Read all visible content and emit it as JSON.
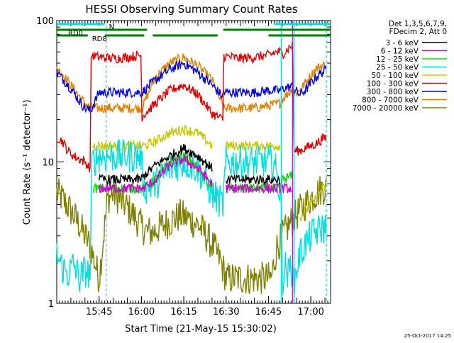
{
  "chart_data": {
    "type": "line",
    "title": "HESSI Observing Summary Count Rates",
    "xlabel": "Start Time (21-May-15 15:30:02)",
    "ylabel": "Count Rate (s⁻¹ detector⁻¹)",
    "footer_date": "25-Oct-2017 14:25",
    "y_scale": "log",
    "ylim": [
      1,
      100
    ],
    "xlim_minutes": [
      0,
      97
    ],
    "x_ticks": [
      {
        "label": "15:45",
        "minute": 15
      },
      {
        "label": "16:00",
        "minute": 30
      },
      {
        "label": "16:15",
        "minute": 45
      },
      {
        "label": "16:30",
        "minute": 60
      },
      {
        "label": "16:45",
        "minute": 75
      },
      {
        "label": "17:00",
        "minute": 90
      }
    ],
    "y_ticks": [
      {
        "label": "1",
        "value": 1
      },
      {
        "label": "10",
        "value": 10
      },
      {
        "label": "100",
        "value": 100
      }
    ],
    "legend_header": [
      "Det 1,3,5,6,7,9,",
      "FDecim 2, Att 0"
    ],
    "legend_placement": "right-outside",
    "flags": [
      {
        "name": "N",
        "color": "#00e0e0",
        "row": 0,
        "segments": [
          [
            0,
            17
          ],
          [
            77,
            97
          ]
        ]
      },
      {
        "name": "RD0",
        "color": "#008000",
        "row": 1,
        "segments": [
          [
            0,
            32
          ],
          [
            59,
            97
          ]
        ]
      },
      {
        "name": "RD8",
        "color": "#008000",
        "row": 2,
        "segments": [
          [
            0,
            11
          ],
          [
            17,
            31
          ],
          [
            34,
            57
          ],
          [
            75,
            97
          ]
        ]
      }
    ],
    "vlines": [
      {
        "minute": 17.5,
        "color": "#00e0e0",
        "style": "dashed"
      },
      {
        "minute": 95.5,
        "color": "#00e0e0",
        "style": "dashed"
      },
      {
        "minute": 79.5,
        "color": "#00e0e0",
        "style": "solid"
      },
      {
        "minute": 84,
        "color": "#00e0e0",
        "style": "solid"
      },
      {
        "minute": 83.5,
        "color": "#c000c0",
        "style": "solid"
      }
    ],
    "series": [
      {
        "name": "3 - 6 keV",
        "color": "#000000",
        "x": [
          12,
          15,
          20,
          25,
          29.8,
          31,
          35,
          40,
          45,
          50,
          55,
          58.5,
          60,
          65,
          70,
          75,
          79,
          80,
          83.5
        ],
        "y": [
          null,
          7.5,
          7.5,
          7.5,
          7.5,
          8,
          9.5,
          11,
          12.5,
          11,
          9,
          null,
          7.5,
          7.5,
          7.5,
          7.5,
          7.5,
          null,
          null
        ]
      },
      {
        "name": "6 - 12 keV",
        "color": "#d000d0",
        "x": [
          12,
          15,
          20,
          25,
          29.8,
          31,
          35,
          40,
          45,
          50,
          55,
          58.5,
          60,
          65,
          70,
          75,
          79,
          83
        ],
        "y": [
          null,
          6.5,
          6.5,
          6.5,
          6.5,
          6.5,
          7.5,
          9.5,
          10.5,
          9,
          7,
          null,
          6.5,
          6.5,
          6.5,
          6.5,
          6.5,
          6.5
        ]
      },
      {
        "name": "12 - 25 keV",
        "color": "#00e000",
        "x": [
          12,
          13,
          20,
          25,
          29.8,
          31,
          35,
          40,
          45,
          50,
          55,
          58.5,
          60,
          65,
          70,
          75,
          79,
          80,
          83.5
        ],
        "y": [
          null,
          6.5,
          6.5,
          6.5,
          6.5,
          6.5,
          7.5,
          10,
          11,
          9,
          6.5,
          null,
          6.5,
          6.5,
          6.5,
          6.5,
          6.5,
          7.5,
          8
        ]
      },
      {
        "name": "25 - 50 keV",
        "color": "#00e0e0",
        "x": [
          0,
          2,
          4,
          6,
          8,
          10,
          11.8,
          12.5,
          15,
          20,
          25,
          29.8,
          31,
          35,
          40,
          45,
          50,
          55,
          58.8,
          60,
          65,
          70,
          75,
          77,
          79,
          79.5,
          80,
          81,
          82,
          83,
          84,
          86,
          88,
          90,
          92,
          94,
          95.5
        ],
        "y": [
          2.2,
          1.8,
          1.6,
          1.9,
          1.5,
          1.7,
          1.6,
          10,
          11,
          11,
          11,
          11,
          6.5,
          7,
          9,
          10,
          9,
          6,
          5,
          10,
          10,
          10,
          10,
          10,
          6,
          5,
          1.5,
          1.8,
          1.6,
          1.9,
          1.4,
          2.2,
          2.6,
          3,
          3.2,
          3.4,
          3.4
        ]
      },
      {
        "name": "50 - 100 keV",
        "color": "#c8c800",
        "x": [
          12,
          12.5,
          15,
          20,
          25,
          29.8,
          31,
          35,
          40,
          45,
          50,
          55,
          58.8,
          60,
          65,
          70,
          75,
          79,
          80,
          84,
          86,
          88,
          90,
          92,
          94,
          95.5
        ],
        "y": [
          null,
          13,
          13,
          13,
          13,
          13,
          13,
          14,
          16,
          17,
          16,
          13,
          null,
          13,
          13,
          13,
          13,
          13,
          null,
          null,
          4,
          4.5,
          5,
          5.5,
          6.5,
          6.5
        ]
      },
      {
        "name": "100 - 300 keV",
        "color": "#e00000",
        "x": [
          0,
          2,
          4,
          6,
          8,
          10,
          11.8,
          12.2,
          15,
          20,
          25,
          29.8,
          30.2,
          35,
          40,
          45,
          50,
          55,
          58.8,
          59.2,
          65,
          70,
          75,
          78,
          79,
          80,
          83,
          83.5,
          84,
          86,
          88,
          90,
          92,
          94,
          95.5
        ],
        "y": [
          15,
          14,
          12,
          11,
          10.5,
          10,
          9,
          57,
          55,
          54,
          55,
          57,
          21,
          26,
          32,
          35,
          30,
          22,
          20,
          56,
          54,
          55,
          57,
          60,
          60,
          58,
          66,
          66,
          12,
          12,
          12.5,
          13,
          13.5,
          14.5,
          15
        ]
      },
      {
        "name": "300 - 800 keV",
        "color": "#0000e0",
        "x": [
          0,
          2,
          4,
          6,
          8,
          10,
          12,
          15,
          20,
          25,
          29.8,
          30.2,
          35,
          40,
          45,
          50,
          55,
          58.8,
          59.2,
          65,
          70,
          75,
          79,
          80,
          83,
          83.5,
          84,
          86,
          88,
          90,
          92,
          94,
          95.5
        ],
        "y": [
          43,
          39,
          35,
          31,
          27,
          24,
          23,
          31,
          31,
          31,
          31,
          31,
          38,
          45,
          50,
          43,
          35,
          29,
          31,
          31,
          31,
          32,
          32,
          33,
          34,
          34,
          33,
          30,
          32,
          36,
          40,
          43,
          45
        ]
      },
      {
        "name": "800 - 7000 keV",
        "color": "#e08000",
        "x": [
          0,
          2,
          4,
          6,
          8,
          10,
          12,
          15,
          20,
          25,
          29.8,
          30.2,
          35,
          40,
          45,
          50,
          55,
          58.8,
          59.2,
          65,
          70,
          75,
          79,
          80,
          83,
          83.5,
          84,
          86,
          88,
          90,
          92,
          94,
          95.5
        ],
        "y": [
          46,
          42,
          37,
          33,
          29,
          26,
          24,
          24,
          24,
          24,
          24,
          24,
          40,
          50,
          55,
          48,
          38,
          25,
          24,
          24,
          24,
          25,
          26,
          28,
          32,
          34,
          30,
          32,
          36,
          41,
          46,
          48,
          49
        ]
      },
      {
        "name": "7000 - 20000 keV",
        "color": "#808000",
        "x": [
          0,
          2,
          4,
          6,
          8,
          10,
          12,
          15,
          18,
          20,
          22,
          24,
          26,
          28,
          30,
          32,
          34,
          36,
          38,
          40,
          42,
          44,
          46,
          48,
          50,
          52,
          54,
          56,
          58,
          60,
          64,
          70,
          76,
          78,
          80,
          82,
          84,
          86,
          88,
          90,
          92,
          94,
          95.5
        ],
        "y": [
          6,
          5.5,
          4.8,
          4.2,
          3.6,
          3.0,
          2.5,
          1.5,
          5.5,
          6,
          5.5,
          5,
          4.5,
          4,
          3.5,
          3.2,
          3.2,
          3.4,
          3.6,
          3.8,
          4.0,
          4.2,
          4.0,
          3.8,
          3.6,
          3.2,
          2.8,
          2.4,
          2,
          1.5,
          1.5,
          1.5,
          1.5,
          2.5,
          3.0,
          3.5,
          4,
          4.5,
          5,
          5.5,
          6,
          6.5,
          6.5
        ]
      }
    ]
  }
}
